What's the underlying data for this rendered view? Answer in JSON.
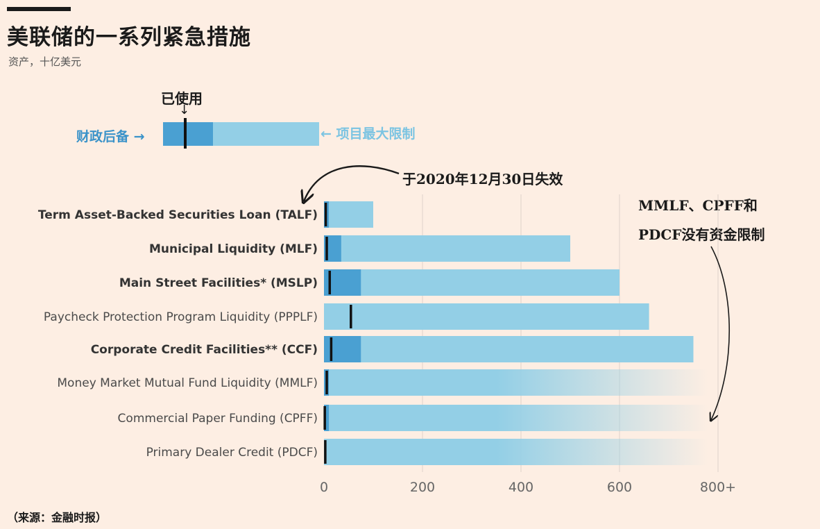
{
  "title": "美联储的一系列紧急措施",
  "subtitle": "资产，十亿美元",
  "source": "（来源：金融时报）",
  "legend": {
    "used": "已使用",
    "treasury_backstop": "财政后备",
    "max_limit": "项目最大限制",
    "arrow_right": "→",
    "arrow_left": "←",
    "arrow_down": "↓"
  },
  "annotations": {
    "talf_expiry": "于2020年12月30日失效",
    "no_limit_line1": "MMLF、CPFF和",
    "no_limit_line2": "PDCF没有资金限制"
  },
  "colors": {
    "background": "#fdeee3",
    "backstop": "#4aa0d2",
    "limit": "#93cfe6",
    "used_marker": "#111111",
    "grid": "#e3d8cf"
  },
  "chart_data": {
    "type": "bar",
    "orientation": "horizontal",
    "title": "美联储的一系列紧急措施",
    "xlabel": "资产，十亿美元",
    "xlim": [
      0,
      800
    ],
    "x_ticks": [
      0,
      200,
      400,
      600,
      800
    ],
    "x_tick_labels": [
      "0",
      "200",
      "400",
      "600",
      "800+"
    ],
    "categories": [
      "Term Asset-Backed Securities Loan (TALF)",
      "Municipal Liquidity (MLF)",
      "Main Street Facilities* (MSLP)",
      "Paycheck Protection Program Liquidity (PPPLF)",
      "Corporate Credit Facilities** (CCF)",
      "Money Market Mutual Fund Liquidity (MMLF)",
      "Commercial Paper Funding (CPFF)",
      "Primary Dealer Credit (PDCF)"
    ],
    "bold_categories": [
      true,
      true,
      true,
      false,
      true,
      false,
      false,
      false
    ],
    "series": [
      {
        "name": "财政后备",
        "values": [
          10,
          35,
          75,
          0,
          75,
          10,
          10,
          0
        ]
      },
      {
        "name": "项目最大限制",
        "values": [
          100,
          500,
          600,
          660,
          750,
          null,
          null,
          null
        ]
      },
      {
        "name": "已使用",
        "values": [
          4,
          6,
          12,
          55,
          15,
          6,
          2,
          3
        ]
      }
    ],
    "unlimited": [
      false,
      false,
      false,
      false,
      false,
      true,
      true,
      true
    ]
  }
}
